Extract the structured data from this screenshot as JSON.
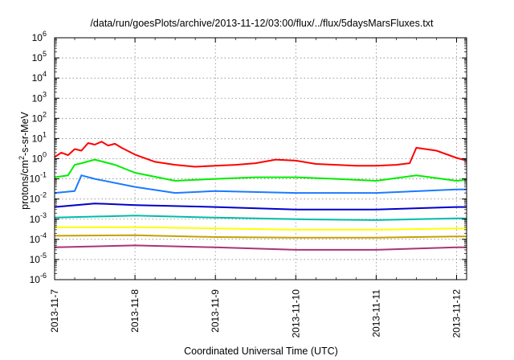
{
  "chart_data": {
    "type": "line",
    "title": "/data/run/goesPlots/archive/2013-11-12/03:00/flux/../flux/5daysMarsFluxes.txt",
    "xlabel": "Coordinated Universal Time (UTC)",
    "ylabel": "protons/cm2-s-sr-MeV",
    "ylabel_parts": {
      "base": "protons/cm",
      "sup": "2",
      "rest": "-s-sr-MeV"
    },
    "yscale": "log",
    "ylim": [
      1e-06,
      1000000.0
    ],
    "y_ticks": [
      {
        "base": "10",
        "exp": "-6"
      },
      {
        "base": "10",
        "exp": "-5"
      },
      {
        "base": "10",
        "exp": "-4"
      },
      {
        "base": "10",
        "exp": "-3"
      },
      {
        "base": "10",
        "exp": "-2"
      },
      {
        "base": "10",
        "exp": "-1"
      },
      {
        "base": "10",
        "exp": "0"
      },
      {
        "base": "10",
        "exp": "1"
      },
      {
        "base": "10",
        "exp": "2"
      },
      {
        "base": "10",
        "exp": "3"
      },
      {
        "base": "10",
        "exp": "4"
      },
      {
        "base": "10",
        "exp": "5"
      },
      {
        "base": "10",
        "exp": "6"
      }
    ],
    "x_ticks": [
      "2013-11-7",
      "2013-11-8",
      "2013-11-9",
      "2013-11-10",
      "2013-11-11",
      "2013-11-12"
    ],
    "xlim": [
      "2013-11-07 00:00",
      "2013-11-12 03:00"
    ],
    "grid": true,
    "series": [
      {
        "color": "#ff0000",
        "x": [
          "2013-11-07 00:00",
          "2013-11-07 02:00",
          "2013-11-07 04:00",
          "2013-11-07 06:00",
          "2013-11-07 08:00",
          "2013-11-07 10:00",
          "2013-11-07 12:00",
          "2013-11-07 14:00",
          "2013-11-07 16:00",
          "2013-11-07 18:00",
          "2013-11-07 20:00",
          "2013-11-08 00:00",
          "2013-11-08 06:00",
          "2013-11-08 12:00",
          "2013-11-08 18:00",
          "2013-11-09 00:00",
          "2013-11-09 06:00",
          "2013-11-09 12:00",
          "2013-11-09 18:00",
          "2013-11-10 00:00",
          "2013-11-10 06:00",
          "2013-11-10 12:00",
          "2013-11-10 18:00",
          "2013-11-11 00:00",
          "2013-11-11 06:00",
          "2013-11-11 10:00",
          "2013-11-11 12:00",
          "2013-11-11 18:00",
          "2013-11-12 00:00",
          "2013-11-12 03:00"
        ],
        "y": [
          1.2,
          2.0,
          1.5,
          3.0,
          2.5,
          6.0,
          5.0,
          7.0,
          4.5,
          5.5,
          3.5,
          1.6,
          0.7,
          0.5,
          0.4,
          0.45,
          0.5,
          0.6,
          0.9,
          0.8,
          0.55,
          0.5,
          0.45,
          0.45,
          0.5,
          0.6,
          3.5,
          2.5,
          1.1,
          0.8
        ]
      },
      {
        "color": "#00ee00",
        "x": [
          "2013-11-07 00:00",
          "2013-11-07 04:00",
          "2013-11-07 06:00",
          "2013-11-07 08:00",
          "2013-11-07 12:00",
          "2013-11-07 18:00",
          "2013-11-08 00:00",
          "2013-11-08 12:00",
          "2013-11-09 00:00",
          "2013-11-09 12:00",
          "2013-11-10 00:00",
          "2013-11-10 12:00",
          "2013-11-11 00:00",
          "2013-11-11 12:00",
          "2013-11-12 00:00",
          "2013-11-12 03:00"
        ],
        "y": [
          0.12,
          0.15,
          0.5,
          0.6,
          0.9,
          0.5,
          0.2,
          0.08,
          0.1,
          0.12,
          0.12,
          0.1,
          0.08,
          0.15,
          0.08,
          0.09
        ]
      },
      {
        "color": "#1a7bff",
        "x": [
          "2013-11-07 00:00",
          "2013-11-07 06:00",
          "2013-11-07 08:00",
          "2013-11-07 12:00",
          "2013-11-08 00:00",
          "2013-11-08 12:00",
          "2013-11-09 00:00",
          "2013-11-10 00:00",
          "2013-11-11 00:00",
          "2013-11-12 00:00",
          "2013-11-12 03:00"
        ],
        "y": [
          0.02,
          0.025,
          0.15,
          0.1,
          0.04,
          0.02,
          0.025,
          0.02,
          0.02,
          0.03,
          0.03
        ]
      },
      {
        "color": "#0000cc",
        "x": [
          "2013-11-07 00:00",
          "2013-11-07 12:00",
          "2013-11-08 00:00",
          "2013-11-09 00:00",
          "2013-11-10 00:00",
          "2013-11-11 00:00",
          "2013-11-12 00:00",
          "2013-11-12 03:00"
        ],
        "y": [
          0.004,
          0.006,
          0.005,
          0.004,
          0.003,
          0.003,
          0.004,
          0.004
        ]
      },
      {
        "color": "#00bbaa",
        "x": [
          "2013-11-07 00:00",
          "2013-11-08 00:00",
          "2013-11-09 00:00",
          "2013-11-10 00:00",
          "2013-11-11 00:00",
          "2013-11-12 00:00",
          "2013-11-12 03:00"
        ],
        "y": [
          0.0012,
          0.0015,
          0.0012,
          0.001,
          0.0009,
          0.0011,
          0.0011
        ]
      },
      {
        "color": "#ffff00",
        "x": [
          "2013-11-07 00:00",
          "2013-11-08 00:00",
          "2013-11-09 00:00",
          "2013-11-10 00:00",
          "2013-11-11 00:00",
          "2013-11-12 00:00",
          "2013-11-12 03:00"
        ],
        "y": [
          0.0004,
          0.0004,
          0.00035,
          0.0003,
          0.0003,
          0.00035,
          0.00035
        ]
      },
      {
        "color": "#c8a000",
        "x": [
          "2013-11-07 00:00",
          "2013-11-08 00:00",
          "2013-11-09 00:00",
          "2013-11-10 00:00",
          "2013-11-11 00:00",
          "2013-11-12 00:00",
          "2013-11-12 03:00"
        ],
        "y": [
          0.00015,
          0.00016,
          0.00013,
          0.00012,
          0.00012,
          0.00014,
          0.00014
        ]
      },
      {
        "color": "#aa3377",
        "x": [
          "2013-11-07 00:00",
          "2013-11-08 00:00",
          "2013-11-09 00:00",
          "2013-11-10 00:00",
          "2013-11-11 00:00",
          "2013-11-12 00:00",
          "2013-11-12 03:00"
        ],
        "y": [
          4e-05,
          5e-05,
          4e-05,
          3e-05,
          3e-05,
          4e-05,
          4e-05
        ]
      }
    ]
  }
}
